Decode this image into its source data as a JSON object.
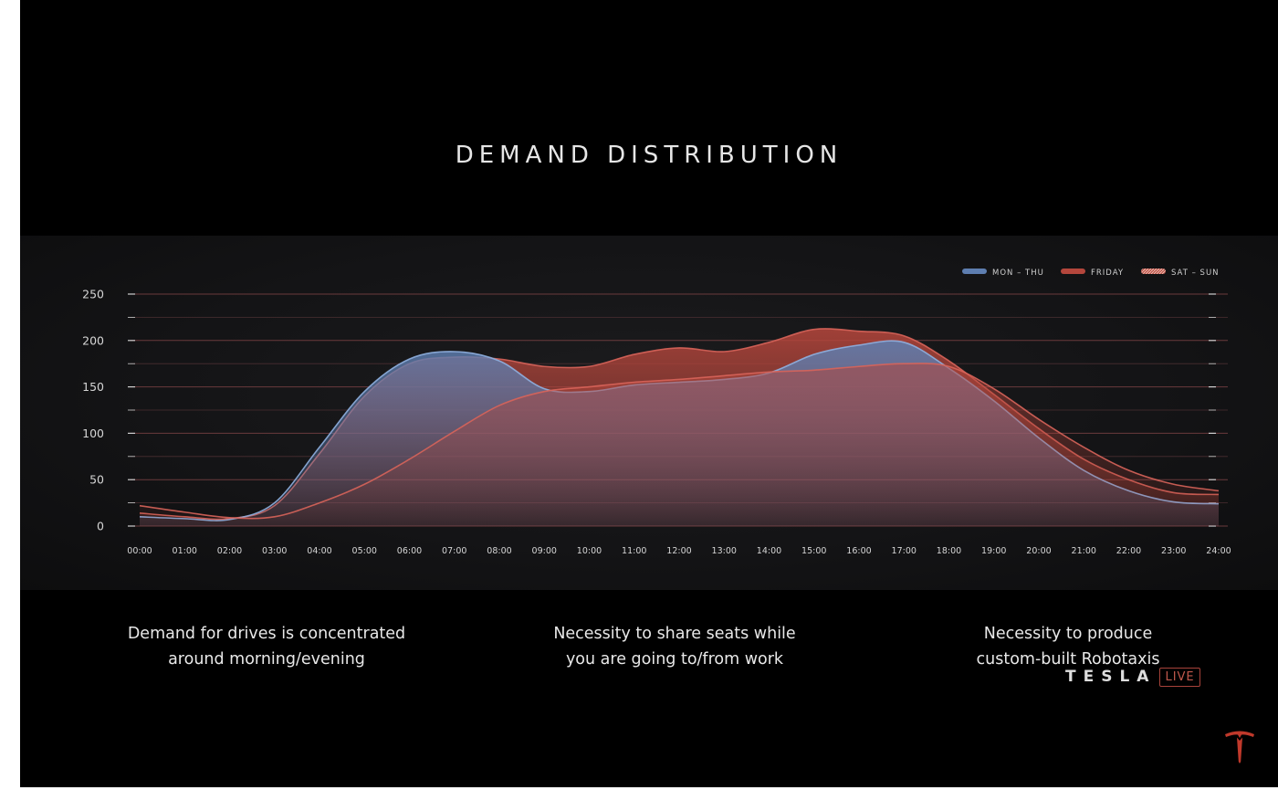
{
  "title": "DEMAND DISTRIBUTION",
  "chart_data": {
    "type": "area",
    "title": "",
    "xlabel": "",
    "ylabel": "",
    "ylim": [
      0,
      250
    ],
    "yticks": [
      0,
      50,
      100,
      150,
      200,
      250
    ],
    "grid": true,
    "legend": "top-right",
    "x": [
      "00:00",
      "01:00",
      "02:00",
      "03:00",
      "04:00",
      "05:00",
      "06:00",
      "07:00",
      "08:00",
      "09:00",
      "10:00",
      "11:00",
      "12:00",
      "13:00",
      "14:00",
      "15:00",
      "16:00",
      "17:00",
      "18:00",
      "19:00",
      "20:00",
      "21:00",
      "22:00",
      "23:00",
      "24:00"
    ],
    "series": [
      {
        "name": "MON – THU",
        "color": "#5e7eb0",
        "values": [
          10,
          8,
          7,
          25,
          85,
          145,
          180,
          188,
          178,
          148,
          145,
          152,
          155,
          158,
          165,
          185,
          195,
          198,
          170,
          135,
          95,
          60,
          38,
          26,
          24
        ]
      },
      {
        "name": "FRIDAY",
        "color": "#b4463c",
        "values": [
          14,
          10,
          8,
          22,
          78,
          140,
          175,
          182,
          180,
          172,
          172,
          185,
          192,
          188,
          198,
          212,
          210,
          205,
          178,
          142,
          105,
          72,
          50,
          36,
          34
        ]
      },
      {
        "name": "SAT – SUN",
        "color": "#c0584c",
        "values": [
          22,
          15,
          9,
          10,
          25,
          45,
          72,
          102,
          130,
          145,
          150,
          155,
          158,
          162,
          166,
          168,
          172,
          175,
          172,
          148,
          115,
          85,
          60,
          45,
          38
        ]
      }
    ]
  },
  "captions": [
    {
      "line1": "Demand for drives is concentrated",
      "line2": "around morning/evening"
    },
    {
      "line1": "Necessity to share seats while",
      "line2": "you are going to/from work"
    },
    {
      "line1": "Necessity to produce",
      "line2": "custom-built Robotaxis"
    }
  ],
  "brand": {
    "word": "TESLA",
    "tag": "LIVE"
  },
  "logo_icon": "tesla-t-logo-icon"
}
